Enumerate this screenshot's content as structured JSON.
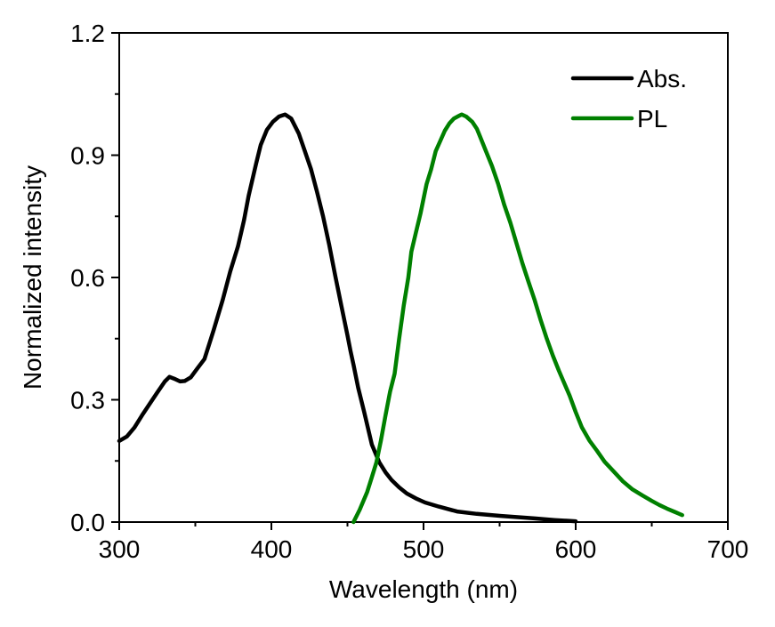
{
  "chart_data": {
    "type": "line",
    "title": "",
    "xlabel": "Wavelength (nm)",
    "ylabel": "Normalized intensity",
    "xlim": [
      300,
      700
    ],
    "ylim": [
      0.0,
      1.2
    ],
    "xticks": [
      300,
      400,
      500,
      600,
      700
    ],
    "xtick_labels": [
      "300",
      "400",
      "500",
      "600",
      "700"
    ],
    "xminor": [
      350,
      450,
      550,
      650
    ],
    "yticks": [
      0.0,
      0.3,
      0.6,
      0.9,
      1.2
    ],
    "ytick_labels": [
      "0.0",
      "0.3",
      "0.6",
      "0.9",
      "1.2"
    ],
    "yminor": [
      0.15,
      0.45,
      0.75,
      1.05
    ],
    "grid": false,
    "legend": {
      "placement": "top-right",
      "frame": false
    },
    "series": [
      {
        "name": "Abs.",
        "color": "#000000",
        "x": [
          300,
          305,
          310,
          315,
          320,
          325,
          330,
          333,
          336,
          340,
          343,
          347,
          351,
          356,
          362,
          368,
          373,
          378,
          382,
          385,
          390,
          393,
          397,
          401,
          405,
          409,
          413,
          418,
          422,
          426,
          430,
          434,
          438,
          442,
          446,
          450,
          452,
          454,
          457,
          461,
          466,
          471,
          475,
          479,
          484,
          489,
          495,
          501,
          510,
          522,
          535,
          551,
          562,
          573,
          586,
          600
        ],
        "y": [
          0.199,
          0.21,
          0.232,
          0.262,
          0.29,
          0.318,
          0.345,
          0.356,
          0.352,
          0.345,
          0.346,
          0.355,
          0.375,
          0.4,
          0.47,
          0.545,
          0.615,
          0.676,
          0.74,
          0.8,
          0.88,
          0.925,
          0.962,
          0.982,
          0.995,
          1.0,
          0.99,
          0.953,
          0.91,
          0.866,
          0.81,
          0.75,
          0.68,
          0.604,
          0.53,
          0.458,
          0.42,
          0.386,
          0.33,
          0.27,
          0.19,
          0.146,
          0.122,
          0.103,
          0.085,
          0.07,
          0.058,
          0.048,
          0.038,
          0.026,
          0.02,
          0.015,
          0.012,
          0.009,
          0.005,
          0.002
        ]
      },
      {
        "name": "PL",
        "color": "#008000",
        "x": [
          454,
          458,
          463,
          466,
          469,
          472,
          475,
          478,
          481,
          484,
          487,
          490,
          492,
          495,
          498,
          502,
          505,
          508,
          511,
          514,
          517,
          520,
          523,
          525,
          528,
          532,
          535,
          537,
          541,
          545,
          549,
          553,
          557,
          561,
          565,
          569,
          573,
          577,
          581,
          585,
          589,
          592,
          596,
          600,
          604,
          609,
          614,
          619,
          625,
          631,
          637,
          644,
          650,
          655,
          660,
          665,
          670
        ],
        "y": [
          0.0,
          0.03,
          0.074,
          0.11,
          0.146,
          0.2,
          0.262,
          0.32,
          0.364,
          0.45,
          0.532,
          0.6,
          0.663,
          0.71,
          0.757,
          0.829,
          0.865,
          0.91,
          0.935,
          0.96,
          0.978,
          0.99,
          0.996,
          1.0,
          0.995,
          0.982,
          0.965,
          0.947,
          0.91,
          0.873,
          0.83,
          0.779,
          0.735,
          0.685,
          0.635,
          0.589,
          0.545,
          0.495,
          0.45,
          0.408,
          0.371,
          0.345,
          0.31,
          0.27,
          0.233,
          0.2,
          0.175,
          0.148,
          0.124,
          0.1,
          0.081,
          0.065,
          0.052,
          0.042,
          0.033,
          0.025,
          0.017
        ]
      }
    ]
  }
}
